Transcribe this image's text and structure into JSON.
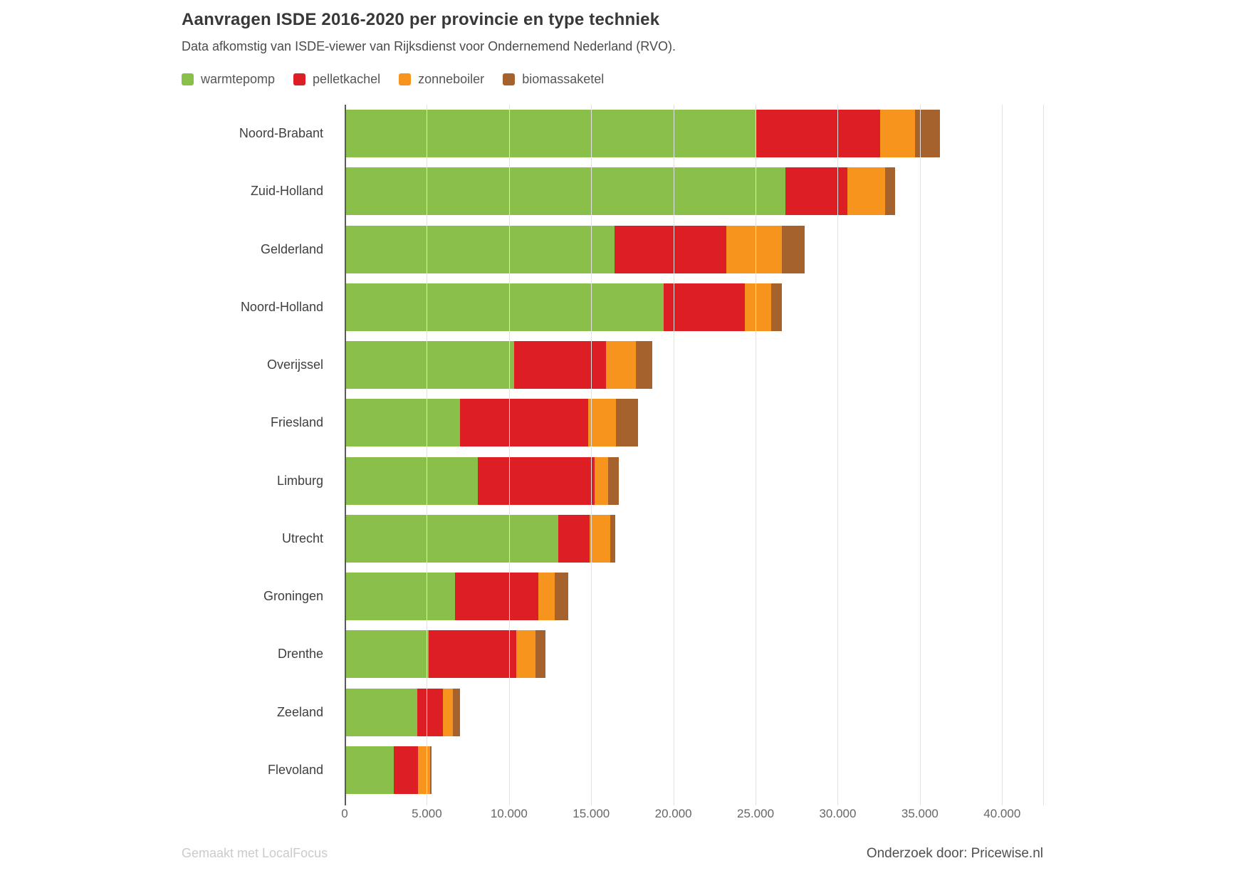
{
  "title": "Aanvragen ISDE 2016-2020 per provincie en type techniek",
  "subtitle": "Data afkomstig van ISDE-viewer van Rijksdienst voor Ondernemend Nederland (RVO).",
  "footer": {
    "made_with": "Gemaakt met LocalFocus",
    "research_by": "Onderzoek door: Pricewise.nl"
  },
  "colors": {
    "warmtepomp": "#8ac04a",
    "pelletkachel": "#dd1e24",
    "zonneboiler": "#f7941e",
    "biomassaketel": "#a5622d",
    "gridline": "#e2e2e2",
    "axis_line": "#5a5a5a"
  },
  "chart_data": {
    "type": "bar",
    "orientation": "horizontal",
    "stacked": true,
    "title": "Aanvragen ISDE 2016-2020 per provincie en type techniek",
    "xlabel": "",
    "ylabel": "",
    "grid": true,
    "legend_position": "top",
    "xlim": [
      0,
      42500
    ],
    "x_tick_values": [
      0,
      5000,
      10000,
      15000,
      20000,
      25000,
      30000,
      35000,
      40000
    ],
    "x_tick_labels": [
      "0",
      "5.000",
      "10.000",
      "15.000",
      "20.000",
      "25.000",
      "30.000",
      "35.000",
      "40.000"
    ],
    "categories": [
      "Noord-Brabant",
      "Zuid-Holland",
      "Gelderland",
      "Noord-Holland",
      "Overijssel",
      "Friesland",
      "Limburg",
      "Utrecht",
      "Groningen",
      "Drenthe",
      "Zeeland",
      "Flevoland"
    ],
    "series": [
      {
        "name": "warmtepomp",
        "color": "#8ac04a",
        "values": [
          25000,
          26800,
          16400,
          19400,
          10300,
          7000,
          8100,
          13000,
          6700,
          5100,
          4400,
          3000
        ]
      },
      {
        "name": "pelletkachel",
        "color": "#dd1e24",
        "values": [
          7600,
          3800,
          6800,
          4950,
          5600,
          7800,
          7100,
          1900,
          5100,
          5350,
          1600,
          1450
        ]
      },
      {
        "name": "zonneboiler",
        "color": "#f7941e",
        "values": [
          2100,
          2300,
          3400,
          1600,
          1800,
          1700,
          850,
          1250,
          1000,
          1150,
          600,
          750
        ]
      },
      {
        "name": "biomassaketel",
        "color": "#a5622d",
        "values": [
          1500,
          600,
          1400,
          650,
          1000,
          1350,
          650,
          300,
          800,
          600,
          400,
          100
        ]
      }
    ],
    "totals": [
      36200,
      33500,
      28000,
      26600,
      18700,
      17850,
      16700,
      16450,
      13600,
      12200,
      7000,
      5300
    ]
  }
}
